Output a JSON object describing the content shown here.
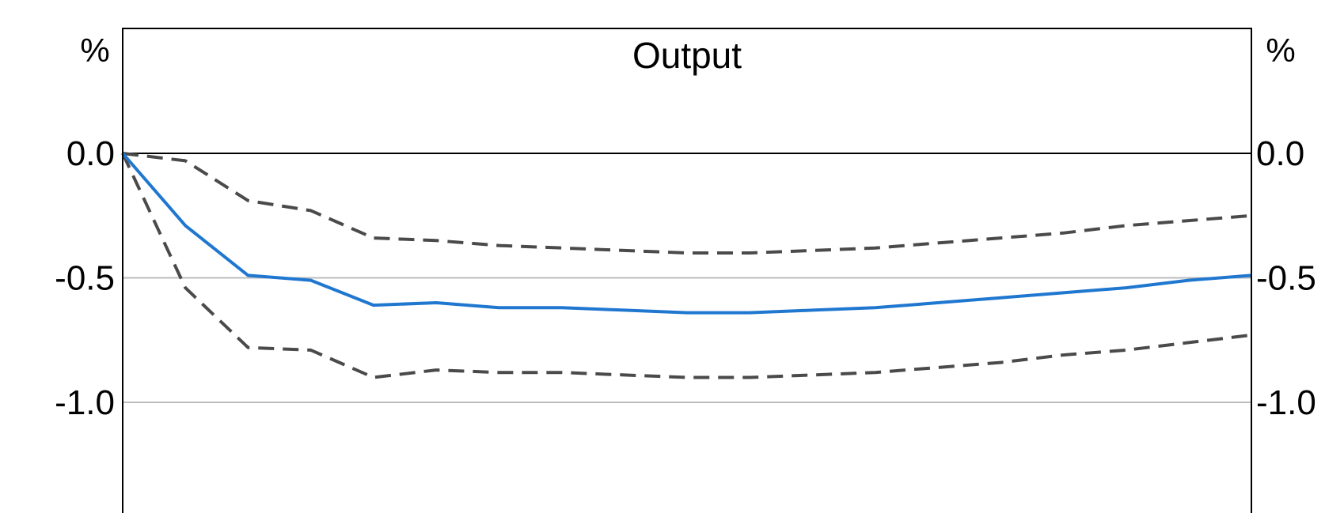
{
  "chart_data": {
    "type": "line",
    "title": "Output",
    "y_unit_left": "%",
    "y_unit_right": "%",
    "ylim": [
      -1.5,
      0.5
    ],
    "yticks": [
      0.0,
      -0.5,
      -1.0
    ],
    "ytick_labels": [
      "0.0",
      "-0.5",
      "-1.0"
    ],
    "grid": true,
    "x": [
      0,
      1,
      2,
      3,
      4,
      5,
      6,
      7,
      8,
      9,
      10,
      11,
      12,
      13,
      14,
      15,
      16,
      17,
      18
    ],
    "series": [
      {
        "style": "solid",
        "color": "#1f77d0",
        "values": [
          0.0,
          -0.29,
          -0.49,
          -0.51,
          -0.61,
          -0.6,
          -0.62,
          -0.62,
          -0.63,
          -0.64,
          -0.64,
          -0.63,
          -0.62,
          -0.6,
          -0.58,
          -0.56,
          -0.54,
          -0.51,
          -0.49
        ]
      },
      {
        "style": "dashed",
        "color": "#4a4a4a",
        "values": [
          0.0,
          -0.03,
          -0.19,
          -0.23,
          -0.34,
          -0.35,
          -0.37,
          -0.38,
          -0.39,
          -0.4,
          -0.4,
          -0.39,
          -0.38,
          -0.36,
          -0.34,
          -0.32,
          -0.29,
          -0.27,
          -0.25
        ]
      },
      {
        "style": "dashed",
        "color": "#4a4a4a",
        "values": [
          0.0,
          -0.54,
          -0.78,
          -0.79,
          -0.9,
          -0.87,
          -0.88,
          -0.88,
          -0.89,
          -0.9,
          -0.9,
          -0.89,
          -0.88,
          -0.86,
          -0.84,
          -0.81,
          -0.79,
          -0.76,
          -0.73
        ]
      }
    ]
  }
}
